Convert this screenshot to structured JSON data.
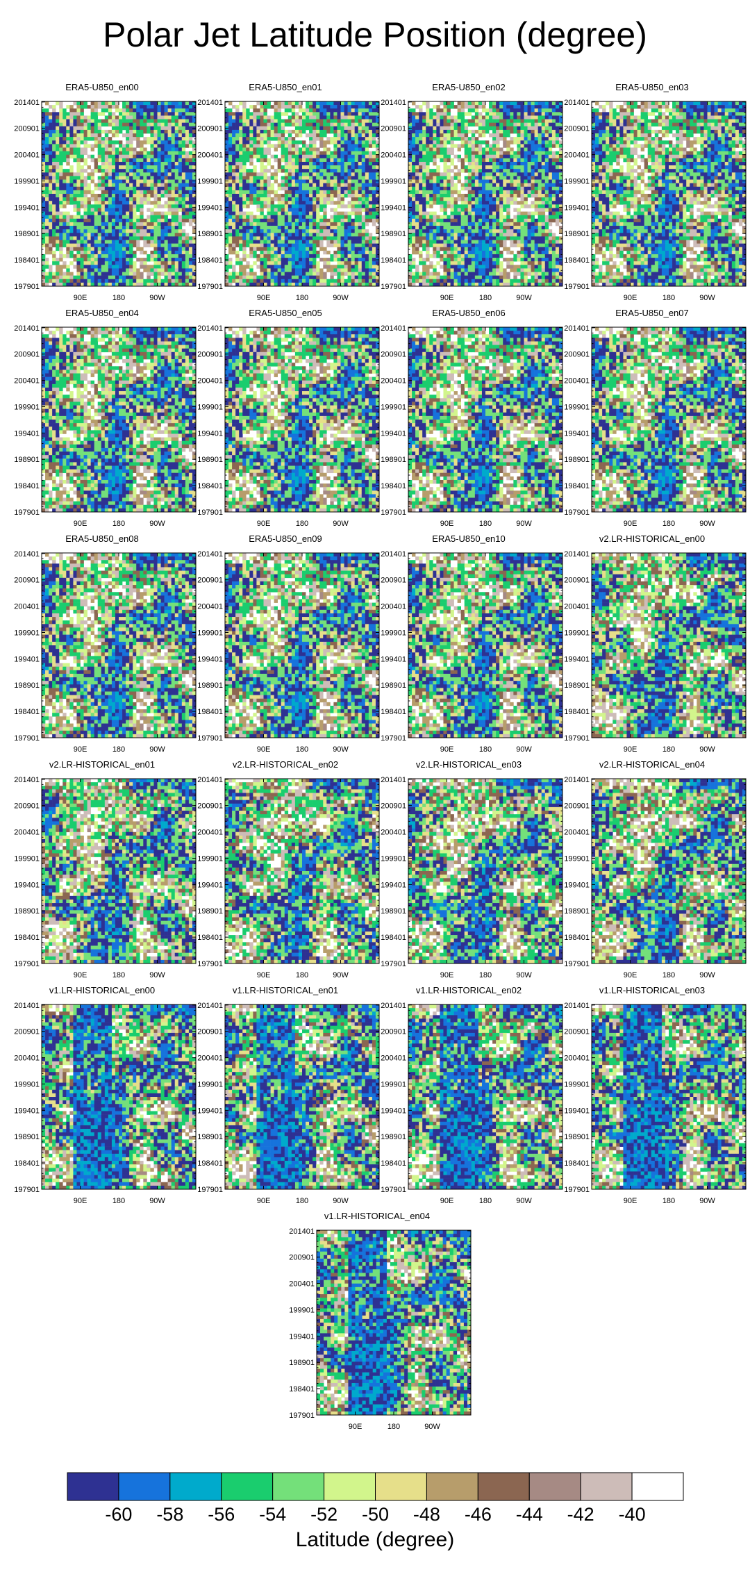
{
  "title": "Polar Jet Latitude Position (degree)",
  "chart_data": {
    "type": "heatmap",
    "panel_titles": [
      "ERA5-U850_en00",
      "ERA5-U850_en01",
      "ERA5-U850_en02",
      "ERA5-U850_en03",
      "ERA5-U850_en04",
      "ERA5-U850_en05",
      "ERA5-U850_en06",
      "ERA5-U850_en07",
      "ERA5-U850_en08",
      "ERA5-U850_en09",
      "ERA5-U850_en10",
      "v2.LR-HISTORICAL_en00",
      "v2.LR-HISTORICAL_en01",
      "v2.LR-HISTORICAL_en02",
      "v2.LR-HISTORICAL_en03",
      "v2.LR-HISTORICAL_en04",
      "v1.LR-HISTORICAL_en00",
      "v1.LR-HISTORICAL_en01",
      "v1.LR-HISTORICAL_en02",
      "v1.LR-HISTORICAL_en03",
      "v1.LR-HISTORICAL_en04"
    ],
    "y_ticks": [
      "201401",
      "200901",
      "200401",
      "199901",
      "199401",
      "198901",
      "198401",
      "197901"
    ],
    "x_ticks": [
      "90E",
      "180",
      "90W"
    ],
    "x_tick_positions_deg": [
      90,
      180,
      270
    ],
    "x_range_deg": [
      0,
      360
    ],
    "y_range": [
      197901,
      201412
    ],
    "colorbar": {
      "title": "Latitude (degree)",
      "labels": [
        "-60",
        "-58",
        "-56",
        "-54",
        "-52",
        "-50",
        "-48",
        "-46",
        "-44",
        "-42",
        "-40"
      ],
      "colors": [
        "#2e3192",
        "#1673dc",
        "#00aacc",
        "#1acd6e",
        "#74e07a",
        "#d2f58c",
        "#e6df8a",
        "#b79d6b",
        "#8b6651",
        "#a68a84",
        "#cdbcb8",
        "#ffffff"
      ]
    }
  }
}
